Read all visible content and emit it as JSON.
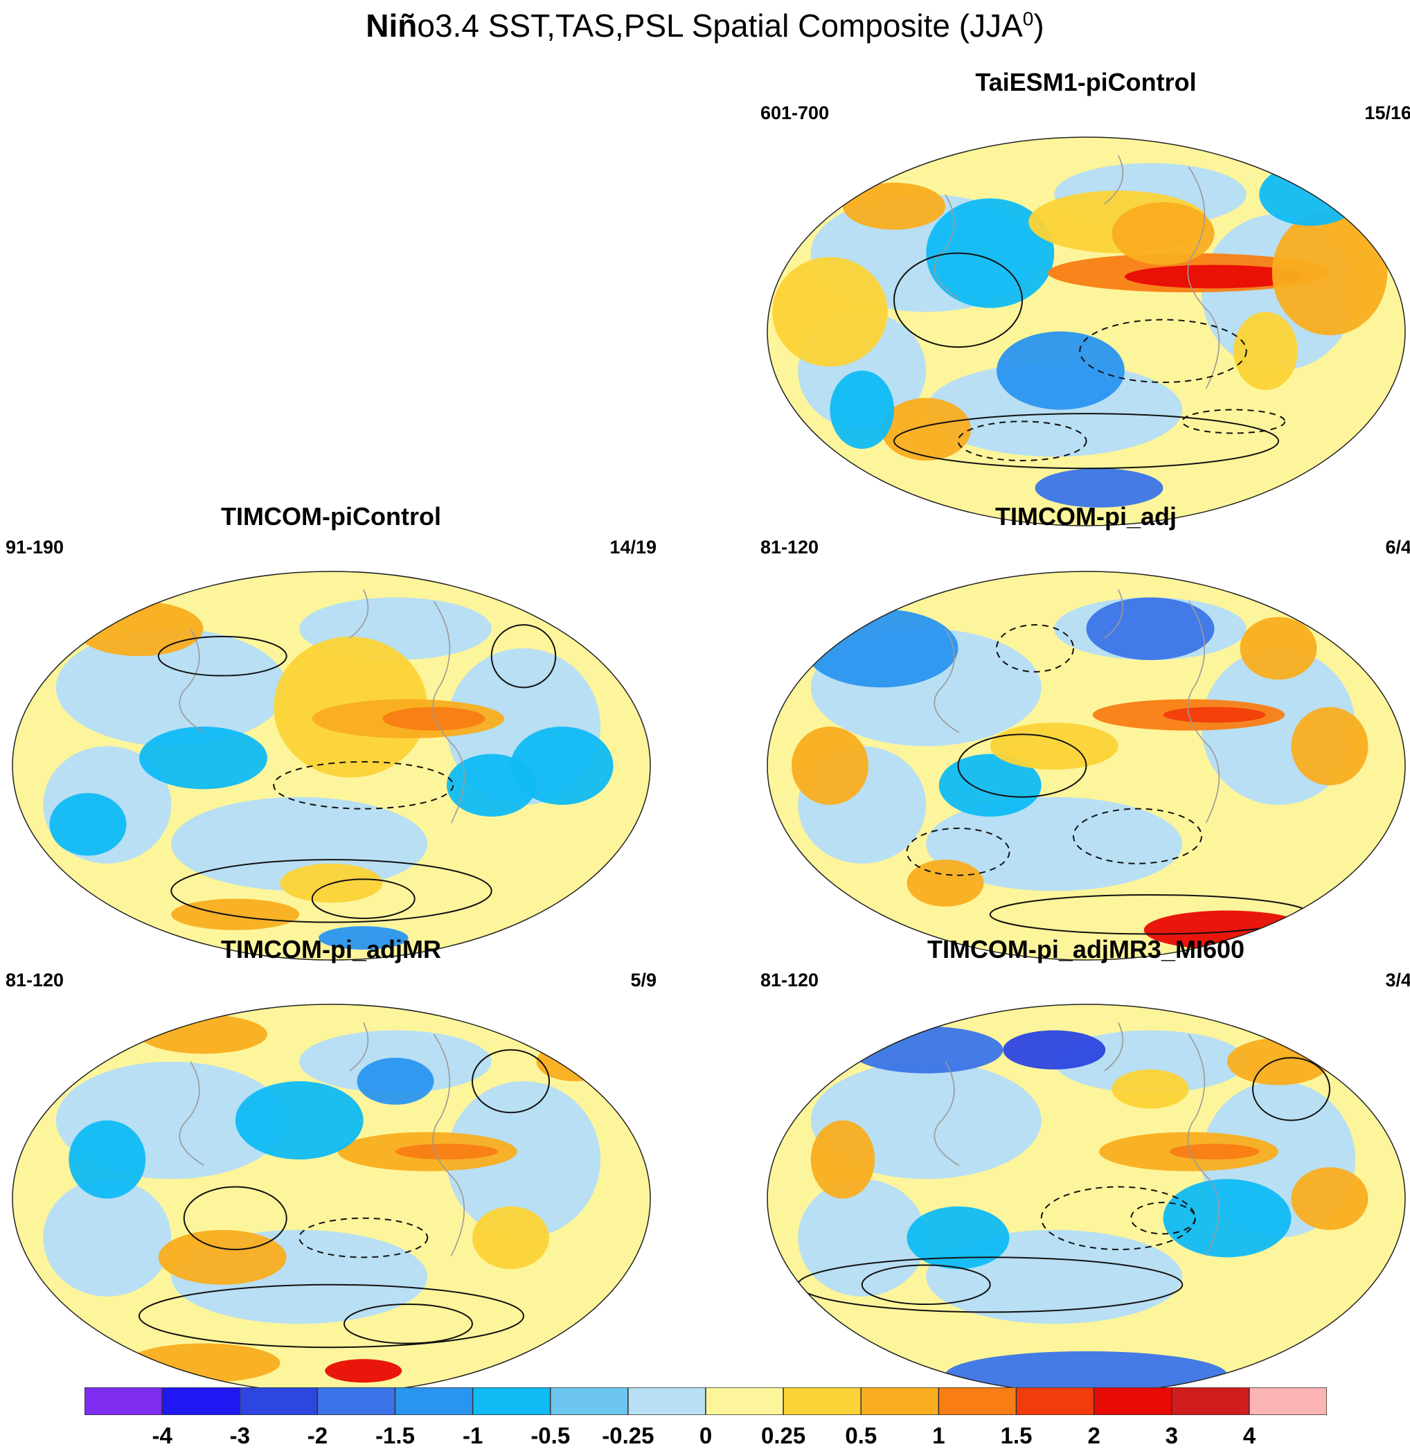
{
  "title": {
    "bold_part": "Niñ",
    "rest": "o3.4 SST,TAS,PSL Spatial Composite (JJA",
    "superscript": "0",
    "closing": ")"
  },
  "panels": [
    {
      "title": "TaiESM1-piControl",
      "years": "601-700",
      "ratio": "15/16"
    },
    {
      "title": "TIMCOM-piControl",
      "years": "91-190",
      "ratio": "14/19"
    },
    {
      "title": "TIMCOM-pi_adj",
      "years": "81-120",
      "ratio": "6/4"
    },
    {
      "title": "TIMCOM-pi_adjMR",
      "years": "81-120",
      "ratio": "5/9"
    },
    {
      "title": "TIMCOM-pi_adjMR3_MI600",
      "years": "81-120",
      "ratio": "3/4"
    }
  ],
  "colorbar": {
    "colors": [
      "#7d2cf0",
      "#1f18f2",
      "#2c46df",
      "#3b74e8",
      "#2a95f0",
      "#10baf4",
      "#6cc6ef",
      "#b8dff3",
      "#fdf59b",
      "#fcd337",
      "#f9ad1f",
      "#f87d14",
      "#f33c0b",
      "#e80a04",
      "#cf1d1d",
      "#fbb4b4"
    ],
    "labels": [
      "-4",
      "-3",
      "-2",
      "-1.5",
      "-1",
      "-0.5",
      "-0.25",
      "0",
      "0.25",
      "0.5",
      "1",
      "1.5",
      "2",
      "3",
      "4"
    ]
  }
}
